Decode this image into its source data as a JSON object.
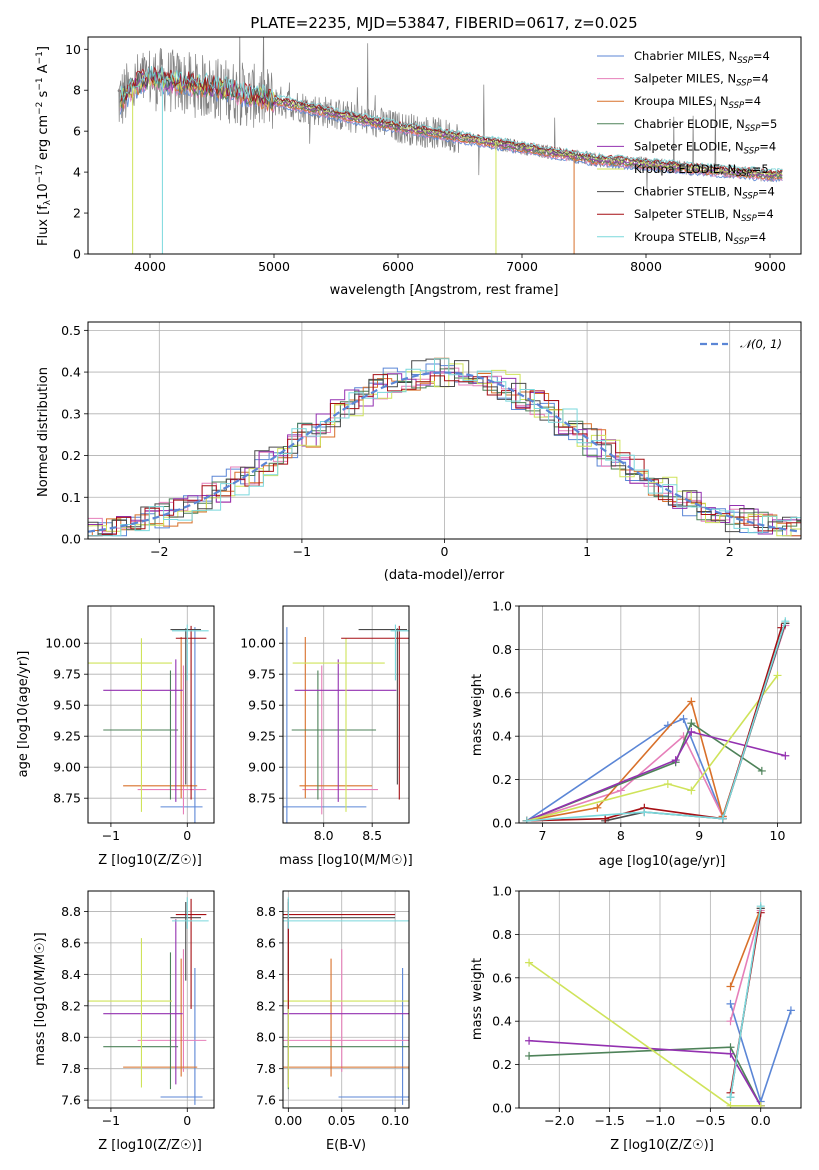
{
  "colors": {
    "Chabrier MILES": "#5b86d6",
    "Salpeter MILES": "#e67fb9",
    "Kroupa MILES": "#d8702a",
    "Chabrier ELODIE": "#4e8259",
    "Salpeter ELODIE": "#9331b0",
    "Kroupa ELODIE": "#cfe35a",
    "Chabrier STELIB": "#4a4a4a",
    "Salpeter STELIB": "#a60f14",
    "Kroupa STELIB": "#7ad8dc"
  },
  "chart_data": [
    {
      "id": "spectrum",
      "type": "line",
      "title": "PLATE=2235, MJD=53847, FIBERID=0617, z=0.025",
      "xlabel": "wavelength [Angstrom, rest frame]",
      "ylabel": "Flux [f_λ 10^-17 erg cm^-2 s^-1 A^-1]",
      "xlim": [
        3500,
        9250
      ],
      "ylim": [
        0,
        10.6
      ],
      "xticks": [
        4000,
        5000,
        6000,
        7000,
        8000,
        9000
      ],
      "yticks": [
        0,
        2,
        4,
        6,
        8,
        10
      ],
      "grid": false,
      "legend_position": "top-right",
      "data_color": "#808080",
      "continuum": {
        "x": [
          3760,
          3900,
          4000,
          4100,
          4300,
          4600,
          5000,
          5300,
          5600,
          6000,
          6300,
          6600,
          7000,
          7300,
          7600,
          8000,
          8400,
          8800,
          9000
        ],
        "y": [
          7.5,
          8.3,
          8.6,
          8.5,
          8.3,
          8.0,
          7.5,
          7.1,
          6.7,
          6.2,
          5.9,
          5.6,
          5.2,
          4.9,
          4.6,
          4.4,
          4.15,
          3.95,
          3.85
        ]
      },
      "legend": [
        {
          "name": "Chabrier MILES",
          "nssp": "4"
        },
        {
          "name": "Salpeter MILES",
          "nssp": "4"
        },
        {
          "name": "Kroupa MILES",
          "nssp": "4"
        },
        {
          "name": "Chabrier ELODIE",
          "nssp": "5"
        },
        {
          "name": "Salpeter ELODIE",
          "nssp": "4"
        },
        {
          "name": "Kroupa ELODIE",
          "nssp": "5"
        },
        {
          "name": "Chabrier STELIB",
          "nssp": "4"
        },
        {
          "name": "Salpeter STELIB",
          "nssp": "4"
        },
        {
          "name": "Kroupa STELIB",
          "nssp": "4"
        }
      ]
    },
    {
      "id": "residuals",
      "type": "histogram",
      "xlabel": "(data-model)/error",
      "ylabel": "Normed distribution",
      "xlim": [
        -2.5,
        2.5
      ],
      "ylim": [
        0,
        0.52
      ],
      "xticks": [
        -2,
        -1,
        0,
        1,
        2
      ],
      "yticks": [
        0.0,
        0.1,
        0.2,
        0.3,
        0.4,
        0.5
      ],
      "grid": true,
      "legend_position": "top-right",
      "reference_curve": {
        "name": "N(0,1)",
        "mean": 0,
        "sigma": 1,
        "color": "#5b86d6"
      },
      "bin_width": 0.1,
      "peak_value": 0.5
    },
    {
      "id": "age-vs-Z",
      "type": "errorbar",
      "xlabel": "Z [log10(Z/Z☉)]",
      "ylabel": "age [log10(age/yr)]",
      "xlim": [
        -1.3,
        0.35
      ],
      "ylim": [
        8.55,
        10.3
      ],
      "xticks": [
        -1,
        0
      ],
      "yticks": [
        8.75,
        9.0,
        9.25,
        9.5,
        9.75,
        10.0
      ],
      "grid": true
    },
    {
      "id": "age-vs-mass",
      "type": "errorbar",
      "xlabel": "mass [log10(M/M☉)]",
      "ylabel": "",
      "xlim": [
        7.58,
        8.88
      ],
      "ylim": [
        8.55,
        10.3
      ],
      "xticks": [
        8.0,
        8.5
      ],
      "yticks": [
        8.75,
        9.0,
        9.25,
        9.5,
        9.75,
        10.0
      ],
      "grid": true
    },
    {
      "id": "weight-vs-age",
      "type": "line",
      "xlabel": "age [log10(age/yr)]",
      "ylabel": "mass weight",
      "xlim": [
        6.7,
        10.3
      ],
      "ylim": [
        0,
        1.0
      ],
      "xticks": [
        7,
        8,
        9,
        10
      ],
      "yticks": [
        0.0,
        0.2,
        0.4,
        0.6,
        0.8,
        1.0
      ],
      "grid": true,
      "series": [
        {
          "model": "Chabrier MILES",
          "x": [
            6.8,
            8.6,
            8.8,
            9.3,
            10.1
          ],
          "y": [
            0.01,
            0.45,
            0.48,
            0.03,
            0.92
          ]
        },
        {
          "model": "Salpeter MILES",
          "x": [
            6.8,
            8.0,
            8.8,
            9.3,
            10.1
          ],
          "y": [
            0.01,
            0.15,
            0.4,
            0.03,
            0.91
          ]
        },
        {
          "model": "Kroupa MILES",
          "x": [
            6.8,
            7.7,
            8.9,
            9.3,
            10.1
          ],
          "y": [
            0.01,
            0.07,
            0.56,
            0.03,
            0.92
          ]
        },
        {
          "model": "Chabrier ELODIE",
          "x": [
            6.8,
            8.7,
            8.9,
            9.8
          ],
          "y": [
            0.01,
            0.28,
            0.46,
            0.24
          ]
        },
        {
          "model": "Salpeter ELODIE",
          "x": [
            6.8,
            8.7,
            8.9,
            10.1
          ],
          "y": [
            0.01,
            0.29,
            0.42,
            0.31
          ]
        },
        {
          "model": "Kroupa ELODIE",
          "x": [
            6.8,
            8.6,
            8.9,
            10.0
          ],
          "y": [
            0.01,
            0.18,
            0.15,
            0.68
          ]
        },
        {
          "model": "Chabrier STELIB",
          "x": [
            7.8,
            8.3,
            9.3,
            10.1
          ],
          "y": [
            0.01,
            0.05,
            0.02,
            0.92
          ]
        },
        {
          "model": "Salpeter STELIB",
          "x": [
            6.8,
            7.8,
            8.3,
            9.3,
            10.05
          ],
          "y": [
            0.01,
            0.02,
            0.07,
            0.02,
            0.9
          ]
        },
        {
          "model": "Kroupa STELIB",
          "x": [
            6.8,
            8.3,
            9.3,
            10.1
          ],
          "y": [
            0.01,
            0.05,
            0.02,
            0.93
          ]
        }
      ]
    },
    {
      "id": "mass-vs-Z",
      "type": "errorbar",
      "xlabel": "Z [log10(Z/Z☉)]",
      "ylabel": "mass [log10(M/M☉)]",
      "xlim": [
        -1.3,
        0.35
      ],
      "ylim": [
        7.55,
        8.93
      ],
      "xticks": [
        -1,
        0
      ],
      "yticks": [
        7.6,
        7.8,
        8.0,
        8.2,
        8.4,
        8.6,
        8.8
      ],
      "grid": true
    },
    {
      "id": "mass-vs-EBV",
      "type": "errorbar",
      "xlabel": "E(B-V)",
      "ylabel": "",
      "xlim": [
        -0.005,
        0.113
      ],
      "ylim": [
        7.55,
        8.93
      ],
      "xticks": [
        0.0,
        0.05,
        0.1
      ],
      "yticks": [
        7.6,
        7.8,
        8.0,
        8.2,
        8.4,
        8.6,
        8.8
      ],
      "grid": true
    },
    {
      "id": "weight-vs-Z",
      "type": "line",
      "xlabel": "Z [log10(Z/Z☉)]",
      "ylabel": "mass weight",
      "xlim": [
        -2.4,
        0.4
      ],
      "ylim": [
        0,
        1.0
      ],
      "xticks": [
        -2.0,
        -1.5,
        -1.0,
        -0.5,
        0.0
      ],
      "yticks": [
        0.0,
        0.2,
        0.4,
        0.6,
        0.8,
        1.0
      ],
      "grid": true,
      "series": [
        {
          "model": "Chabrier MILES",
          "x": [
            -0.3,
            0.0,
            0.3
          ],
          "y": [
            0.48,
            0.03,
            0.45
          ]
        },
        {
          "model": "Salpeter MILES",
          "x": [
            -0.3,
            0.0
          ],
          "y": [
            0.4,
            0.91
          ]
        },
        {
          "model": "Kroupa MILES",
          "x": [
            -0.3,
            0.0
          ],
          "y": [
            0.56,
            0.92
          ]
        },
        {
          "model": "Chabrier ELODIE",
          "x": [
            -2.3,
            -0.3,
            0.0
          ],
          "y": [
            0.24,
            0.28,
            0.01
          ]
        },
        {
          "model": "Salpeter ELODIE",
          "x": [
            -2.3,
            -0.3,
            0.0
          ],
          "y": [
            0.31,
            0.25,
            0.01
          ]
        },
        {
          "model": "Kroupa ELODIE",
          "x": [
            -2.3,
            -0.3,
            0.0
          ],
          "y": [
            0.67,
            0.01,
            0.01
          ]
        },
        {
          "model": "Chabrier STELIB",
          "x": [
            -0.3,
            0.0
          ],
          "y": [
            0.05,
            0.92
          ]
        },
        {
          "model": "Salpeter STELIB",
          "x": [
            -0.3,
            0.0
          ],
          "y": [
            0.07,
            0.9
          ]
        },
        {
          "model": "Kroupa STELIB",
          "x": [
            -0.3,
            0.0
          ],
          "y": [
            0.05,
            0.93
          ]
        }
      ]
    }
  ],
  "points": [
    {
      "model": "Chabrier MILES",
      "Z": 0.1,
      "Z_err": [
        0.45,
        0.1
      ],
      "age": 8.68,
      "age_err": [
        0.15,
        1.45
      ],
      "mass": 7.62,
      "mass_err": [
        0.05,
        0.82
      ],
      "ebv": 0.107,
      "ebv_err": [
        0.06,
        0.82
      ]
    },
    {
      "model": "Salpeter MILES",
      "Z": -0.05,
      "Z_err": [
        0.6,
        0.3
      ],
      "age": 8.82,
      "age_err": [
        0.2,
        1.0
      ],
      "mass": 7.98,
      "mass_err": [
        0.2,
        0.58
      ],
      "ebv": 0.05,
      "ebv_err": [
        0.15,
        0.6
      ]
    },
    {
      "model": "Kroupa MILES",
      "Z": -0.08,
      "Z_err": [
        0.76,
        0.21
      ],
      "age": 8.85,
      "age_err": [
        0.1,
        1.2
      ],
      "mass": 7.81,
      "mass_err": [
        0.06,
        0.69
      ],
      "ebv": 0.04,
      "ebv_err": [
        0.06,
        0.69
      ]
    },
    {
      "model": "Chabrier ELODIE",
      "Z": -0.22,
      "Z_err": [
        0.88,
        0.1
      ],
      "age": 9.3,
      "age_err": [
        0.56,
        0.48
      ],
      "mass": 7.94,
      "mass_err": [
        0.27,
        0.6
      ],
      "ebv": 0.0,
      "ebv_err": [
        0.27,
        0.6
      ]
    },
    {
      "model": "Salpeter ELODIE",
      "Z": -0.15,
      "Z_err": [
        0.95,
        0.09
      ],
      "age": 9.62,
      "age_err": [
        0.9,
        0.25
      ],
      "mass": 8.15,
      "mass_err": [
        0.45,
        0.6
      ],
      "ebv": 0.0,
      "ebv_err": [
        0.45,
        0.6
      ]
    },
    {
      "model": "Kroupa ELODIE",
      "Z": -0.6,
      "Z_err": [
        0.7,
        0.4
      ],
      "age": 9.84,
      "age_err": [
        1.2,
        0.2
      ],
      "mass": 8.23,
      "mass_err": [
        0.55,
        0.4
      ],
      "ebv": 0.0,
      "ebv_err": [
        0.5,
        0.4
      ]
    },
    {
      "model": "Chabrier STELIB",
      "Z": -0.02,
      "Z_err": [
        0.2,
        0.2
      ],
      "age": 10.11,
      "age_err": [
        1.25,
        0.01
      ],
      "mass": 8.76,
      "mass_err": [
        0.4,
        0.1
      ],
      "ebv": 0.0,
      "ebv_err": [
        0.4,
        0.1
      ]
    },
    {
      "model": "Salpeter STELIB",
      "Z": 0.05,
      "Z_err": [
        0.2,
        0.2
      ],
      "age": 10.04,
      "age_err": [
        1.3,
        0.1
      ],
      "mass": 8.78,
      "mass_err": [
        0.6,
        0.1
      ],
      "ebv": 0.0,
      "ebv_err": [
        0.6,
        0.1
      ]
    },
    {
      "model": "Kroupa STELIB",
      "Z": 0.0,
      "Z_err": [
        0.2,
        0.28
      ],
      "age": 10.1,
      "age_err": [
        0.4,
        0.05
      ],
      "mass": 8.74,
      "mass_err": [
        0.05,
        0.15
      ],
      "ebv": 0.0,
      "ebv_err": [
        0.05,
        0.15
      ]
    }
  ]
}
